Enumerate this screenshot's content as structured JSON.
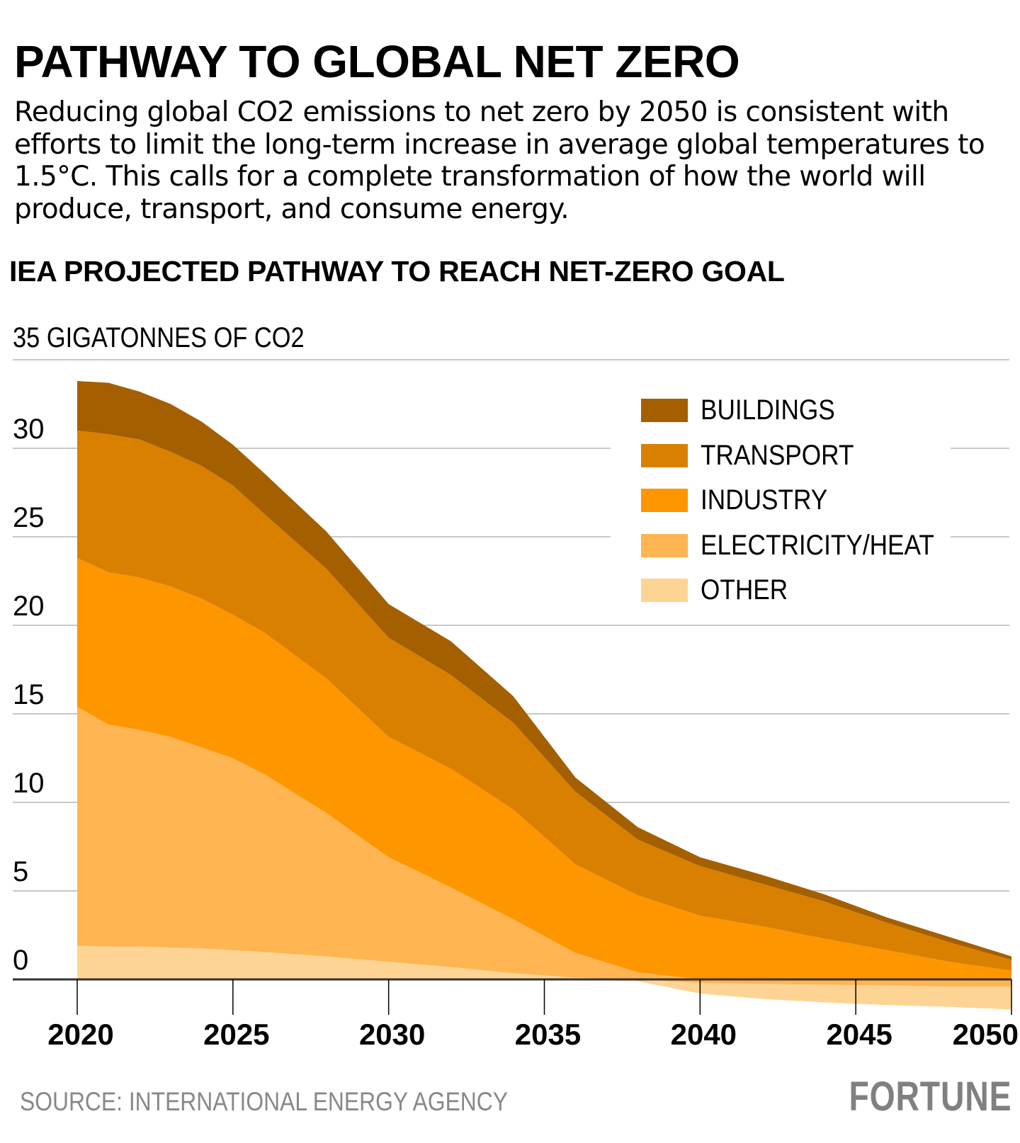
{
  "header": {
    "title": "PATHWAY TO GLOBAL NET ZERO",
    "subtitle": "Reducing global CO2 emissions to net zero by 2050 is consistent with efforts to limit the long-term increase in average global temperatures to 1.5°C. This calls for a complete transformation of how the world will produce, transport, and consume energy."
  },
  "footer": {
    "source": "SOURCE: INTERNATIONAL ENERGY AGENCY",
    "logo": "FORTUNE"
  },
  "chart_data": {
    "type": "area",
    "stacked": true,
    "title": "IEA PROJECTED PATHWAY TO REACH NET-ZERO GOAL",
    "ylabel": "35 GIGATONNES OF CO2",
    "xlabel": "",
    "xlim": [
      2020,
      2050
    ],
    "ylim": [
      -2,
      35
    ],
    "x_ticks": [
      "2020",
      "2025",
      "2030",
      "2035",
      "2040",
      "2045",
      "2050"
    ],
    "y_ticks": [
      "0",
      "5",
      "10",
      "15",
      "20",
      "25",
      "30"
    ],
    "grid": true,
    "legend_position": "top-right",
    "x": [
      2020,
      2021,
      2022,
      2023,
      2024,
      2025,
      2026,
      2028,
      2030,
      2032,
      2034,
      2036,
      2038,
      2040,
      2042,
      2044,
      2046,
      2048,
      2050
    ],
    "series": [
      {
        "name": "OTHER",
        "color": "#fed494",
        "values": [
          1.9,
          1.85,
          1.85,
          1.8,
          1.75,
          1.65,
          1.55,
          1.3,
          1.0,
          0.7,
          0.35,
          0.1,
          -0.1,
          -0.6,
          -0.85,
          -1.0,
          -1.1,
          -1.15,
          -1.3
        ]
      },
      {
        "name": "ELECTRICITY/HEAT",
        "color": "#feb552",
        "values": [
          13.5,
          12.55,
          12.25,
          11.9,
          11.35,
          10.85,
          10.05,
          8.1,
          5.9,
          4.5,
          3.05,
          1.4,
          0.4,
          -0.2,
          -0.25,
          -0.3,
          -0.35,
          -0.4,
          -0.4
        ]
      },
      {
        "name": "INDUSTRY",
        "color": "#fe9600",
        "values": [
          8.4,
          8.6,
          8.6,
          8.5,
          8.4,
          8.1,
          8.0,
          7.6,
          6.8,
          6.7,
          6.2,
          5.0,
          4.35,
          3.6,
          3.0,
          2.3,
          1.65,
          1.0,
          0.5
        ]
      },
      {
        "name": "TRANSPORT",
        "color": "#d98000",
        "values": [
          7.2,
          7.8,
          7.8,
          7.6,
          7.5,
          7.3,
          6.7,
          6.2,
          5.6,
          5.3,
          4.9,
          4.1,
          3.15,
          2.8,
          2.4,
          2.1,
          1.55,
          1.1,
          0.6
        ]
      },
      {
        "name": "BUILDINGS",
        "color": "#a35f00",
        "values": [
          2.8,
          2.9,
          2.7,
          2.7,
          2.5,
          2.3,
          2.3,
          2.1,
          1.9,
          1.9,
          1.5,
          0.8,
          0.7,
          0.5,
          0.5,
          0.4,
          0.3,
          0.3,
          0.2
        ]
      }
    ],
    "legend_order": [
      "BUILDINGS",
      "TRANSPORT",
      "INDUSTRY",
      "ELECTRICITY/HEAT",
      "OTHER"
    ]
  }
}
